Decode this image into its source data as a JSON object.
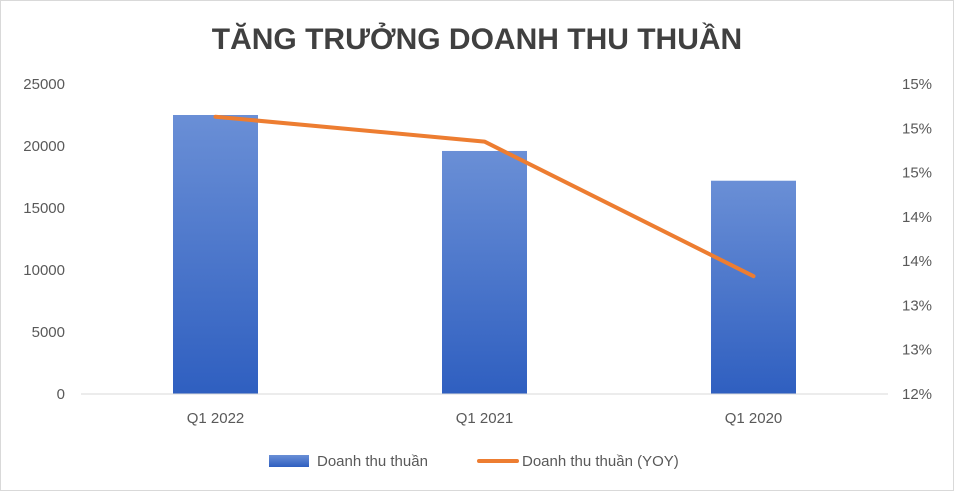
{
  "chart_data": {
    "type": "bar+line",
    "title": "TĂNG TRƯỞNG DOANH THU THUẦN",
    "categories": [
      "Q1 2022",
      "Q1 2021",
      "Q1 2020"
    ],
    "series": [
      {
        "name": "Doanh thu thuần",
        "type": "bar",
        "axis": "left",
        "values": [
          22500,
          19600,
          17200
        ],
        "color": "#4472c4"
      },
      {
        "name": "Doanh thu thuần (YOY)",
        "type": "line",
        "axis": "right",
        "values": [
          0.1513,
          0.1485,
          0.1333
        ],
        "color": "#ed7d31"
      }
    ],
    "y_left": {
      "ylim": [
        0,
        25000
      ],
      "ticks": [
        0,
        5000,
        10000,
        15000,
        20000,
        25000
      ],
      "tick_labels": [
        "0",
        "5000",
        "10000",
        "15000",
        "20000",
        "25000"
      ]
    },
    "y_right": {
      "ylim": [
        0.12,
        0.155
      ],
      "ticks": [
        0.12,
        0.125,
        0.13,
        0.135,
        0.14,
        0.145,
        0.15,
        0.155
      ],
      "tick_labels": [
        "12%",
        "13%",
        "13%",
        "14%",
        "14%",
        "15%",
        "15%",
        "15%"
      ]
    },
    "legend": {
      "position": "bottom"
    },
    "grid": false
  }
}
